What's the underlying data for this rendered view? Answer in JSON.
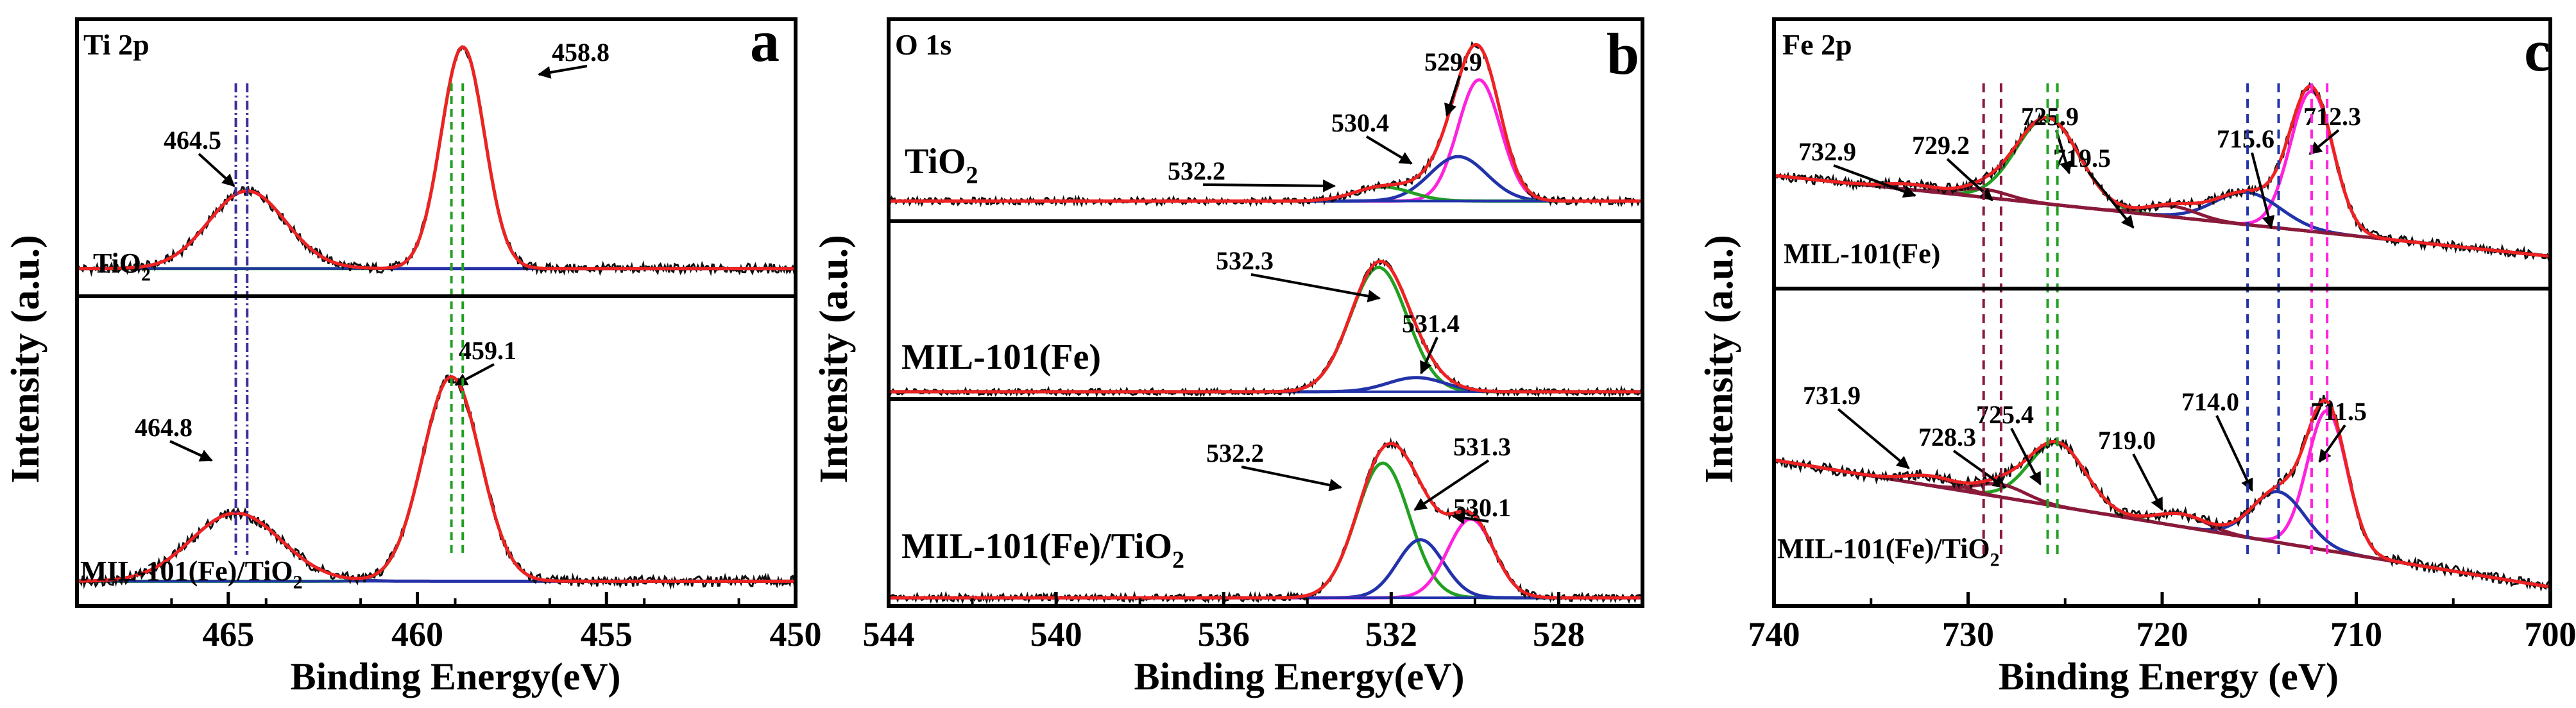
{
  "chart_data": [
    {
      "type": "line",
      "panel_letter": "a",
      "title": "Ti 2p",
      "xlabel": "Binding Energy(eV)",
      "ylabel": "Intensity (a.u.)",
      "xlim": [
        469,
        450
      ],
      "x_ticks": [
        465,
        460,
        455,
        450
      ],
      "subplots": [
        {
          "sample": "TiO",
          "sample_sub": "2",
          "baseline": 0.1,
          "peaks": [
            {
              "center": 458.8,
              "amp": 0.8,
              "fwhm": 1.35,
              "color": "#22a022"
            },
            {
              "center": 464.5,
              "amp": 0.28,
              "fwhm": 2.4,
              "color": "#3a2f9a"
            }
          ],
          "annotations": [
            "458.8",
            "464.5"
          ]
        },
        {
          "sample": "MIL-101(Fe)/TiO",
          "sample_sub": "2",
          "baseline": 0.08,
          "peaks": [
            {
              "center": 459.1,
              "amp": 0.66,
              "fwhm": 1.8,
              "color": "#22a022"
            },
            {
              "center": 464.8,
              "amp": 0.22,
              "fwhm": 2.8,
              "color": "#3a2f9a"
            }
          ],
          "annotations": [
            "459.1",
            "464.8"
          ]
        }
      ]
    },
    {
      "type": "line",
      "panel_letter": "b",
      "title": "O 1s",
      "xlabel": "Binding Energy(eV)",
      "ylabel": "Intensity (a.u.)",
      "xlim": [
        544,
        526
      ],
      "x_ticks": [
        544,
        540,
        536,
        532,
        528
      ],
      "subplots": [
        {
          "sample": "TiO",
          "sample_sub": "2",
          "baseline": 0.1,
          "peaks": [
            {
              "center": 529.9,
              "amp": 0.6,
              "fwhm": 1.2,
              "color": "#ff22dd"
            },
            {
              "center": 530.4,
              "amp": 0.22,
              "fwhm": 1.6,
              "color": "#2233aa"
            },
            {
              "center": 532.2,
              "amp": 0.07,
              "fwhm": 1.6,
              "color": "#22a022"
            }
          ],
          "annotations": [
            "529.9",
            "530.4",
            "532.2"
          ]
        },
        {
          "sample": "MIL-101(Fe)",
          "sample_sub": "",
          "baseline": 0.04,
          "peaks": [
            {
              "center": 532.3,
              "amp": 0.7,
              "fwhm": 1.6,
              "color": "#22a022"
            },
            {
              "center": 531.4,
              "amp": 0.08,
              "fwhm": 1.6,
              "color": "#2233aa"
            }
          ],
          "annotations": [
            "532.3",
            "531.4"
          ]
        },
        {
          "sample": "MIL-101(Fe)/TiO",
          "sample_sub": "2",
          "baseline": 0.04,
          "peaks": [
            {
              "center": 532.2,
              "amp": 0.65,
              "fwhm": 1.5,
              "color": "#22a022"
            },
            {
              "center": 531.3,
              "amp": 0.28,
              "fwhm": 1.3,
              "color": "#2233aa"
            },
            {
              "center": 530.1,
              "amp": 0.38,
              "fwhm": 1.3,
              "color": "#ff22dd"
            }
          ],
          "annotations": [
            "532.2",
            "531.3",
            "530.1"
          ]
        }
      ]
    },
    {
      "type": "line",
      "panel_letter": "c",
      "title": "Fe 2p",
      "xlabel": "Binding Energy (eV)",
      "ylabel": "Intensity (a.u.)",
      "xlim": [
        740,
        700
      ],
      "x_ticks": [
        740,
        730,
        720,
        710,
        700
      ],
      "subplots": [
        {
          "sample": "MIL-101(Fe)",
          "sample_sub": "",
          "baseline_left": 0.42,
          "baseline_right": 0.12,
          "peaks": [
            {
              "center": 712.3,
              "amp": 0.52,
              "fwhm": 2.6,
              "color": "#ff22dd"
            },
            {
              "center": 715.6,
              "amp": 0.12,
              "fwhm": 4.0,
              "color": "#2233aa"
            },
            {
              "center": 725.9,
              "amp": 0.32,
              "fwhm": 3.8,
              "color": "#22a022"
            },
            {
              "center": 719.5,
              "amp": 0.04,
              "fwhm": 3.0,
              "color": "#8b1a3a"
            },
            {
              "center": 729.2,
              "amp": 0.03,
              "fwhm": 3.0,
              "color": "#8b1a3a"
            },
            {
              "center": 732.9,
              "amp": 0.02,
              "fwhm": 3.0,
              "color": "#8b1a3a"
            }
          ],
          "annotations": [
            "712.3",
            "715.6",
            "719.5",
            "725.9",
            "729.2",
            "732.9"
          ]
        },
        {
          "sample": "MIL-101(Fe)/TiO",
          "sample_sub": "2",
          "baseline_left": 0.46,
          "baseline_right": 0.06,
          "peaks": [
            {
              "center": 711.5,
              "amp": 0.44,
              "fwhm": 2.4,
              "color": "#ff22dd"
            },
            {
              "center": 714.0,
              "amp": 0.16,
              "fwhm": 3.2,
              "color": "#2233aa"
            },
            {
              "center": 725.4,
              "amp": 0.2,
              "fwhm": 3.4,
              "color": "#22a022"
            },
            {
              "center": 719.0,
              "amp": 0.04,
              "fwhm": 3.0,
              "color": "#8b1a3a"
            },
            {
              "center": 728.3,
              "amp": 0.04,
              "fwhm": 3.0,
              "color": "#8b1a3a"
            },
            {
              "center": 731.9,
              "amp": 0.03,
              "fwhm": 3.0,
              "color": "#8b1a3a"
            }
          ],
          "annotations": [
            "711.5",
            "714.0",
            "719.0",
            "725.4",
            "728.3",
            "731.9"
          ]
        }
      ]
    }
  ]
}
